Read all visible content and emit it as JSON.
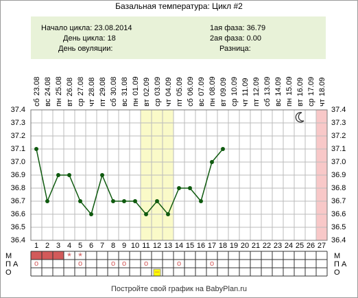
{
  "chart_data": {
    "type": "line",
    "title": "Базальная температура: Цикл #2",
    "info_left": [
      "Начало цикла: 23.08.2014",
      "День цикла: 18",
      "День овуляции:"
    ],
    "info_right": [
      "1ая фаза: 36.79",
      "2ая фаза: 0.00",
      "Разница:"
    ],
    "days": [
      1,
      2,
      3,
      4,
      5,
      6,
      7,
      8,
      9,
      10,
      11,
      12,
      13,
      14,
      15,
      16,
      17,
      18,
      19,
      20,
      21,
      22,
      23,
      24,
      25,
      26,
      27
    ],
    "weekdays": [
      "сб",
      "вс",
      "пн",
      "вт",
      "ср",
      "чт",
      "пт",
      "сб",
      "вс",
      "пн",
      "вт",
      "ср",
      "чт",
      "пт",
      "сб",
      "вс",
      "пн",
      "вт",
      "ср",
      "чт",
      "пт",
      "сб",
      "вс",
      "пн",
      "вт",
      "ср",
      "чт"
    ],
    "dates": [
      "23.08",
      "24.08",
      "25.08",
      "26.08",
      "27.08",
      "28.08",
      "29.08",
      "30.08",
      "31.08",
      "01.09",
      "02.09",
      "03.09",
      "04.09",
      "05.09",
      "06.09",
      "07.09",
      "08.09",
      "09.09",
      "10.09",
      "11.09",
      "12.09",
      "13.09",
      "14.09",
      "15.09",
      "16.09",
      "17.09",
      "18.09"
    ],
    "values": [
      37.1,
      36.7,
      36.9,
      36.9,
      36.7,
      36.6,
      36.9,
      36.7,
      36.7,
      36.7,
      36.6,
      36.7,
      36.6,
      36.8,
      36.8,
      36.7,
      37.0,
      37.1,
      null,
      null,
      null,
      null,
      null,
      null,
      null,
      null,
      null
    ],
    "color": "#0f5a0f",
    "ylim": [
      36.4,
      37.4
    ],
    "yticks": [
      36.4,
      36.5,
      36.6,
      36.7,
      36.8,
      36.9,
      {
        "value": 37,
        "label": "37.0"
      },
      37.1,
      37.2,
      37.3,
      37.4
    ],
    "grid": true,
    "highlight_days": [
      11,
      12,
      13
    ],
    "highlight_color": "#fafac8",
    "end_day": 27,
    "end_color": "#f8c8c8",
    "moon_day": 25,
    "rows": [
      {
        "label": "М",
        "fill_days": [
          1,
          2,
          3
        ],
        "fill_color": "#d25a5a",
        "symbols": [
          {
            "day": 4,
            "text": "*"
          },
          {
            "day": 5,
            "text": "*"
          }
        ]
      },
      {
        "label": "П А",
        "symbols": [
          {
            "day": 1,
            "text": "o"
          },
          {
            "day": 5,
            "text": "o"
          },
          {
            "day": 8,
            "text": "o"
          },
          {
            "day": 9,
            "text": "o"
          },
          {
            "day": 11,
            "text": "o"
          },
          {
            "day": 14,
            "text": "o"
          },
          {
            "day": 17,
            "text": "o"
          }
        ]
      },
      {
        "label": "О",
        "symbols": [
          {
            "day": 12,
            "text": "–",
            "box": "#ffff00"
          }
        ]
      }
    ],
    "footer": "Постройте свой график на BabyPlan.ru"
  }
}
